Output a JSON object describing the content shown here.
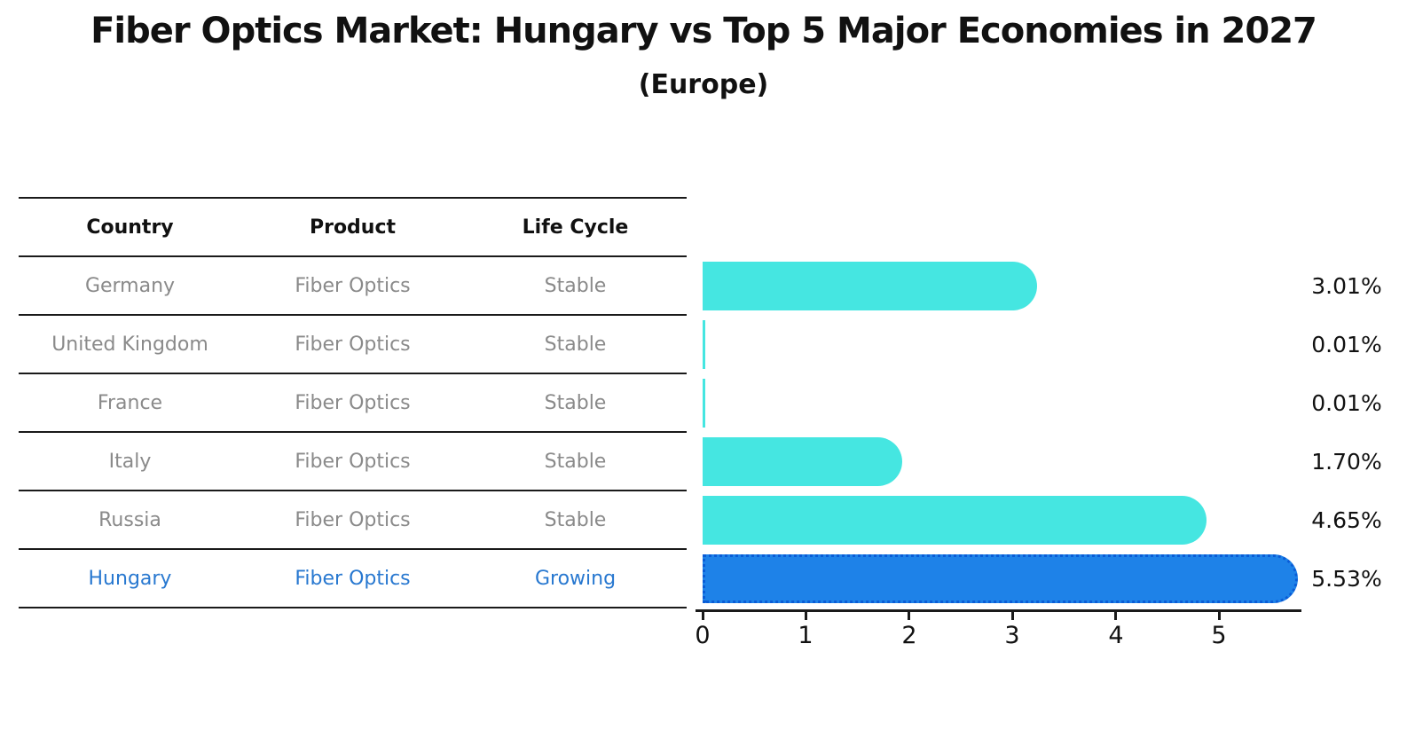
{
  "title": "Fiber Optics Market: Hungary vs Top 5 Major Economies in 2027",
  "subtitle": "(Europe)",
  "table": {
    "headers": [
      "Country",
      "Product",
      "Life Cycle"
    ],
    "rows": [
      {
        "country": "Germany",
        "product": "Fiber Optics",
        "life_cycle": "Stable",
        "highlighted": false
      },
      {
        "country": "United Kingdom",
        "product": "Fiber Optics",
        "life_cycle": "Stable",
        "highlighted": false
      },
      {
        "country": "France",
        "product": "Fiber Optics",
        "life_cycle": "Stable",
        "highlighted": false
      },
      {
        "country": "Italy",
        "product": "Fiber Optics",
        "life_cycle": "Stable",
        "highlighted": false
      },
      {
        "country": "Russia",
        "product": "Fiber Optics",
        "life_cycle": "Stable",
        "highlighted": false
      },
      {
        "country": "Hungary",
        "product": "Fiber Optics",
        "life_cycle": "Growing",
        "highlighted": true
      }
    ]
  },
  "chart_data": {
    "type": "bar",
    "orientation": "horizontal",
    "categories": [
      "Germany",
      "United Kingdom",
      "France",
      "Italy",
      "Russia",
      "Hungary"
    ],
    "values": [
      3.01,
      0.01,
      0.01,
      1.7,
      4.65,
      5.53
    ],
    "value_labels": [
      "3.01%",
      "0.01%",
      "0.01%",
      "1.70%",
      "4.65%",
      "5.53%"
    ],
    "x_ticks": [
      "0",
      "1",
      "2",
      "3",
      "4",
      "5"
    ],
    "xlim": [
      0,
      5.85
    ],
    "grid": false,
    "legend": "none",
    "highlight_index": 5,
    "bar_color": "#45E6E1",
    "highlight_bar_color": "#1E82E8",
    "highlight_border_color": "#0a5cd6",
    "highlight_text_color": "#2878d0",
    "row_text_color": "#8a8a8a"
  }
}
